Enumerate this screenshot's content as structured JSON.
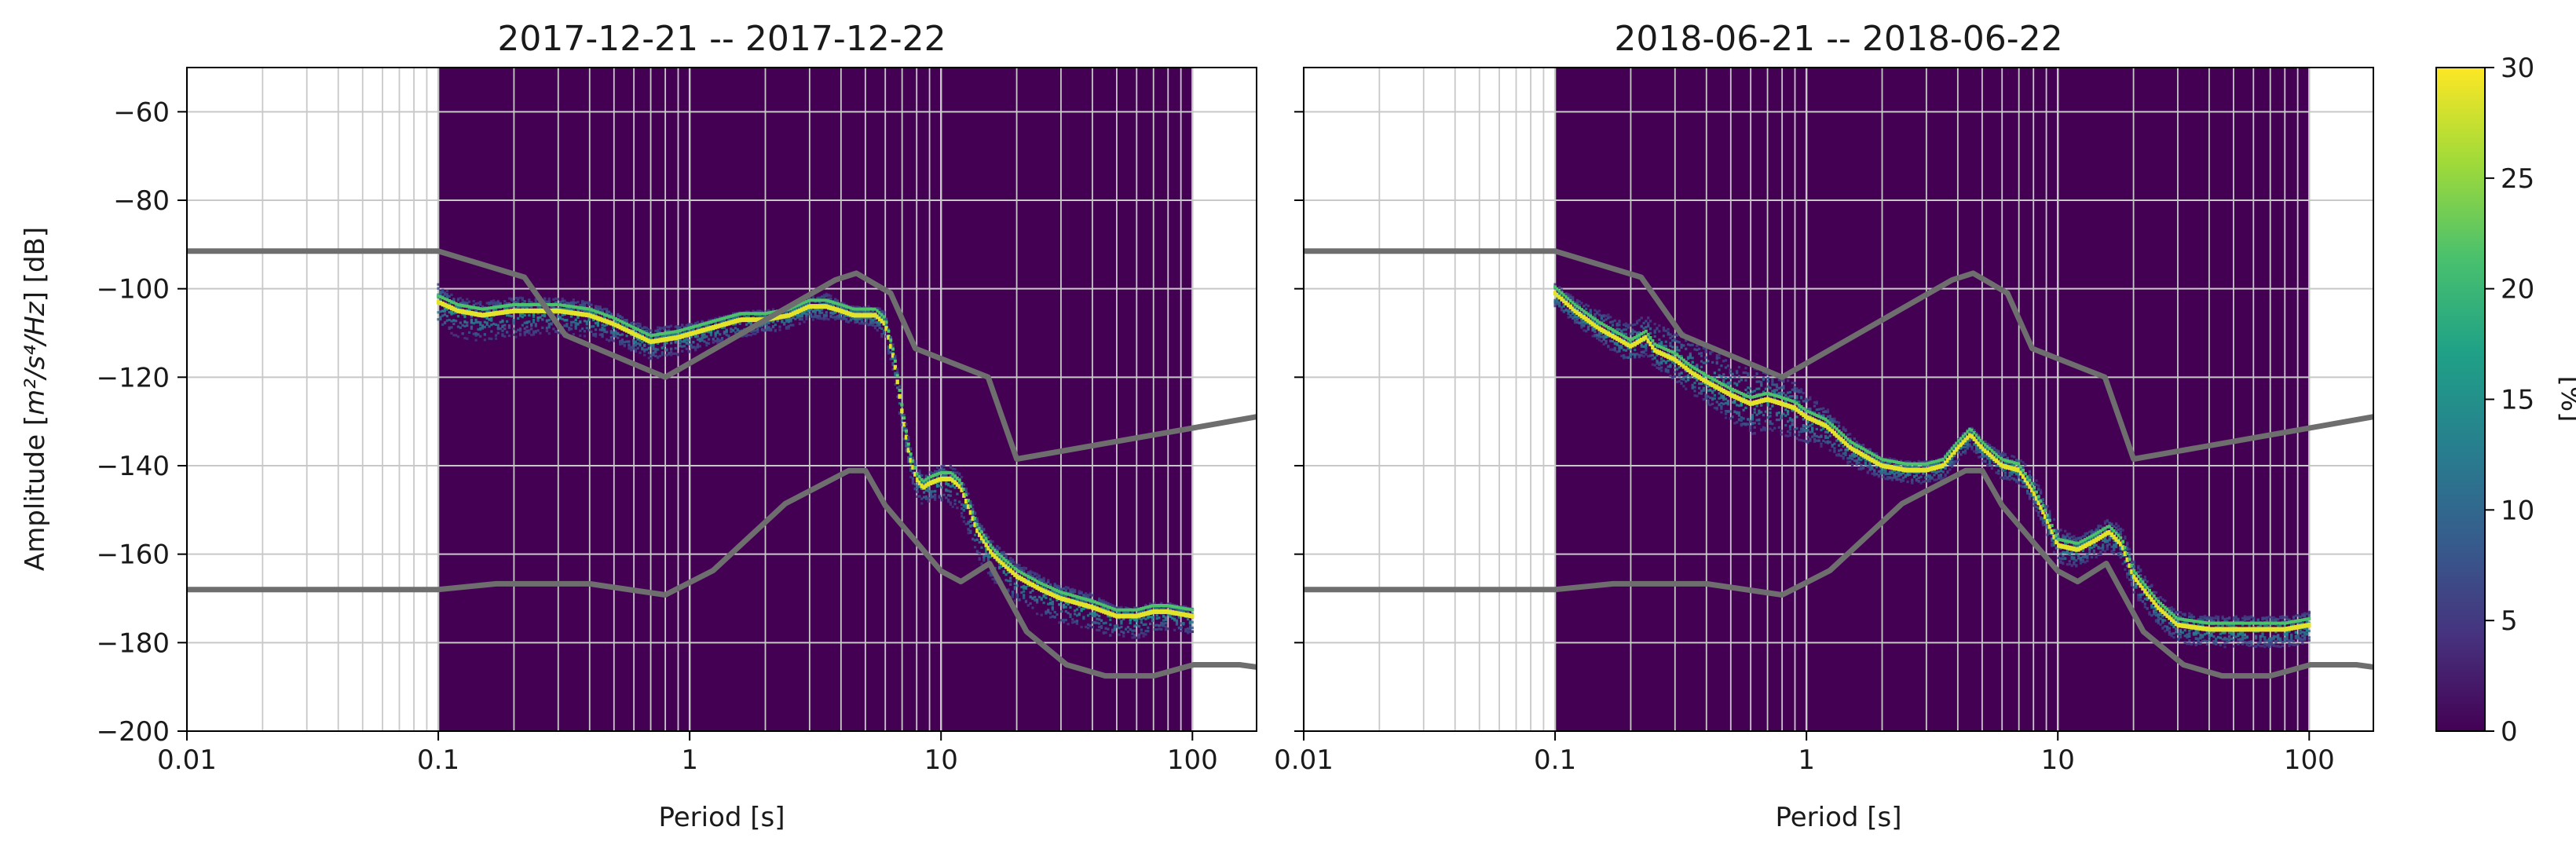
{
  "chart_data": [
    {
      "type": "heatmap",
      "title": "2017-12-21 -- 2017-12-22",
      "xlabel": "Period [s]",
      "ylabel": "Amplitude [m²/s⁴/Hz] [dB]",
      "x_scale": "log",
      "xlim": [
        0.01,
        180
      ],
      "ylim": [
        -200,
        -50
      ],
      "xticks": [
        0.01,
        0.1,
        1,
        10,
        100
      ],
      "xtick_labels": [
        "0.01",
        "0.1",
        "1",
        "10",
        "100"
      ],
      "yticks": [
        -200,
        -180,
        -160,
        -140,
        -120,
        -100,
        -80,
        -60
      ],
      "ytick_labels": [
        "−200",
        "−180",
        "−160",
        "−140",
        "−120",
        "−100",
        "−80",
        "−60"
      ],
      "grid": true,
      "data_period_range": [
        0.1,
        100
      ],
      "background_color": "#440154",
      "ppsd_mode": {
        "period": [
          0.1,
          0.12,
          0.15,
          0.2,
          0.3,
          0.4,
          0.5,
          0.7,
          0.9,
          1.2,
          1.6,
          2.0,
          2.5,
          3.0,
          3.5,
          4.0,
          4.5,
          5.0,
          5.5,
          6.0,
          6.5,
          7.0,
          7.5,
          8.0,
          8.5,
          9.0,
          10,
          11,
          12,
          13,
          14,
          16,
          20,
          25,
          30,
          40,
          50,
          60,
          70,
          80,
          100
        ],
        "amplitude": [
          -103,
          -105,
          -106,
          -105,
          -105,
          -106,
          -108,
          -112,
          -111,
          -109,
          -107,
          -107,
          -106,
          -104,
          -104,
          -105,
          -106,
          -106,
          -106,
          -108,
          -116,
          -128,
          -138,
          -143,
          -145,
          -144,
          -143,
          -143,
          -145,
          -150,
          -155,
          -160,
          -165,
          -168,
          -170,
          -172,
          -174,
          -174,
          -173,
          -173,
          -174
        ]
      },
      "ppsd_spread": {
        "lower": [
          -6,
          -6,
          -6,
          -6,
          -5,
          -5,
          -4,
          -4,
          -4,
          -4,
          -4,
          -3,
          -3,
          -3,
          -3,
          -2,
          -2,
          -2,
          -3,
          -4,
          -4,
          -4,
          -4,
          -4,
          -4,
          -4,
          -5,
          -6,
          -6,
          -6,
          -6,
          -6,
          -6,
          -6,
          -6,
          -5,
          -5,
          -5,
          -5,
          -4,
          -4
        ],
        "upper": [
          4,
          3,
          3,
          3,
          3,
          3,
          3,
          3,
          3,
          2,
          2,
          2,
          2,
          2,
          3,
          2,
          2,
          2,
          2,
          3,
          3,
          3,
          3,
          3,
          3,
          3,
          3,
          3,
          3,
          3,
          3,
          3,
          3,
          3,
          3,
          3,
          2,
          2,
          2,
          2,
          2
        ]
      }
    },
    {
      "type": "heatmap",
      "title": "2018-06-21 -- 2018-06-22",
      "xlabel": "Period [s]",
      "x_scale": "log",
      "xlim": [
        0.01,
        180
      ],
      "ylim": [
        -200,
        -50
      ],
      "xticks": [
        0.01,
        0.1,
        1,
        10,
        100
      ],
      "xtick_labels": [
        "0.01",
        "0.1",
        "1",
        "10",
        "100"
      ],
      "grid": true,
      "data_period_range": [
        0.1,
        100
      ],
      "background_color": "#440154",
      "ppsd_mode": {
        "period": [
          0.1,
          0.12,
          0.15,
          0.2,
          0.23,
          0.25,
          0.3,
          0.35,
          0.4,
          0.5,
          0.6,
          0.7,
          0.8,
          0.9,
          1.0,
          1.2,
          1.5,
          2.0,
          2.5,
          3.0,
          3.5,
          4.0,
          4.5,
          5.0,
          6.0,
          7.0,
          8.0,
          9.0,
          10,
          12,
          14,
          16,
          18,
          20,
          25,
          30,
          40,
          50,
          60,
          80,
          100
        ],
        "amplitude": [
          -101,
          -105,
          -109,
          -113,
          -111,
          -114,
          -116,
          -119,
          -121,
          -124,
          -126,
          -125,
          -126,
          -127,
          -129,
          -131,
          -136,
          -140,
          -141,
          -141,
          -140,
          -136,
          -133,
          -136,
          -140,
          -141,
          -146,
          -152,
          -158,
          -159,
          -157,
          -155,
          -158,
          -165,
          -172,
          -176,
          -177,
          -177,
          -177,
          -177,
          -176
        ]
      },
      "ppsd_spread": {
        "lower": [
          -3,
          -3,
          -3,
          -4,
          -4,
          -4,
          -5,
          -5,
          -5,
          -6,
          -7,
          -7,
          -7,
          -7,
          -6,
          -5,
          -4,
          -3,
          -3,
          -3,
          -3,
          -3,
          -3,
          -3,
          -3,
          -3,
          -3,
          -3,
          -4,
          -4,
          -4,
          -4,
          -4,
          -4,
          -4,
          -4,
          -4,
          -4,
          -4,
          -4,
          -4
        ],
        "upper": [
          2,
          3,
          4,
          5,
          5,
          6,
          7,
          8,
          8,
          8,
          8,
          7,
          6,
          6,
          5,
          4,
          3,
          2,
          2,
          2,
          2,
          2,
          2,
          2,
          3,
          3,
          4,
          4,
          4,
          3,
          3,
          3,
          4,
          4,
          3,
          3,
          3,
          3,
          3,
          3,
          3
        ]
      }
    }
  ],
  "noise_models": {
    "color": "#6e6e6e",
    "nhnm": {
      "period": [
        0.01,
        0.1,
        0.22,
        0.32,
        0.8,
        3.8,
        4.6,
        6.3,
        7.9,
        15.4,
        20,
        354.8
      ],
      "amplitude": [
        -91.5,
        -91.5,
        -97.4,
        -110.5,
        -120,
        -98,
        -96.5,
        -101,
        -113.5,
        -120,
        -138.5,
        -126
      ]
    },
    "nlnm": {
      "period": [
        0.01,
        0.1,
        0.17,
        0.4,
        0.8,
        1.24,
        2.4,
        4.3,
        5.0,
        6.0,
        10,
        12,
        15.6,
        21.9,
        31.6,
        45,
        70,
        101,
        154,
        328
      ],
      "amplitude": [
        -168,
        -168,
        -166.7,
        -166.7,
        -169.2,
        -163.7,
        -148.6,
        -141.1,
        -141.1,
        -149,
        -163.8,
        -166.2,
        -162.1,
        -177.5,
        -185,
        -187.5,
        -187.5,
        -185,
        -185,
        -187.5
      ]
    }
  },
  "colorbar": {
    "label": "[%]",
    "min": 0,
    "max": 30,
    "ticks": [
      0,
      5,
      10,
      15,
      20,
      25,
      30
    ],
    "tick_labels": [
      "0",
      "5",
      "10",
      "15",
      "20",
      "25",
      "30"
    ],
    "colormap": "viridis",
    "colors": [
      "#440154",
      "#46327e",
      "#365c8d",
      "#277f8e",
      "#1fa187",
      "#4ac16d",
      "#a0da39",
      "#fde725"
    ]
  },
  "axis_labels": {
    "ylabel_prefix": "Amplitude [",
    "ylabel_math": "m²/s⁴/Hz",
    "ylabel_suffix": "] [dB]"
  }
}
